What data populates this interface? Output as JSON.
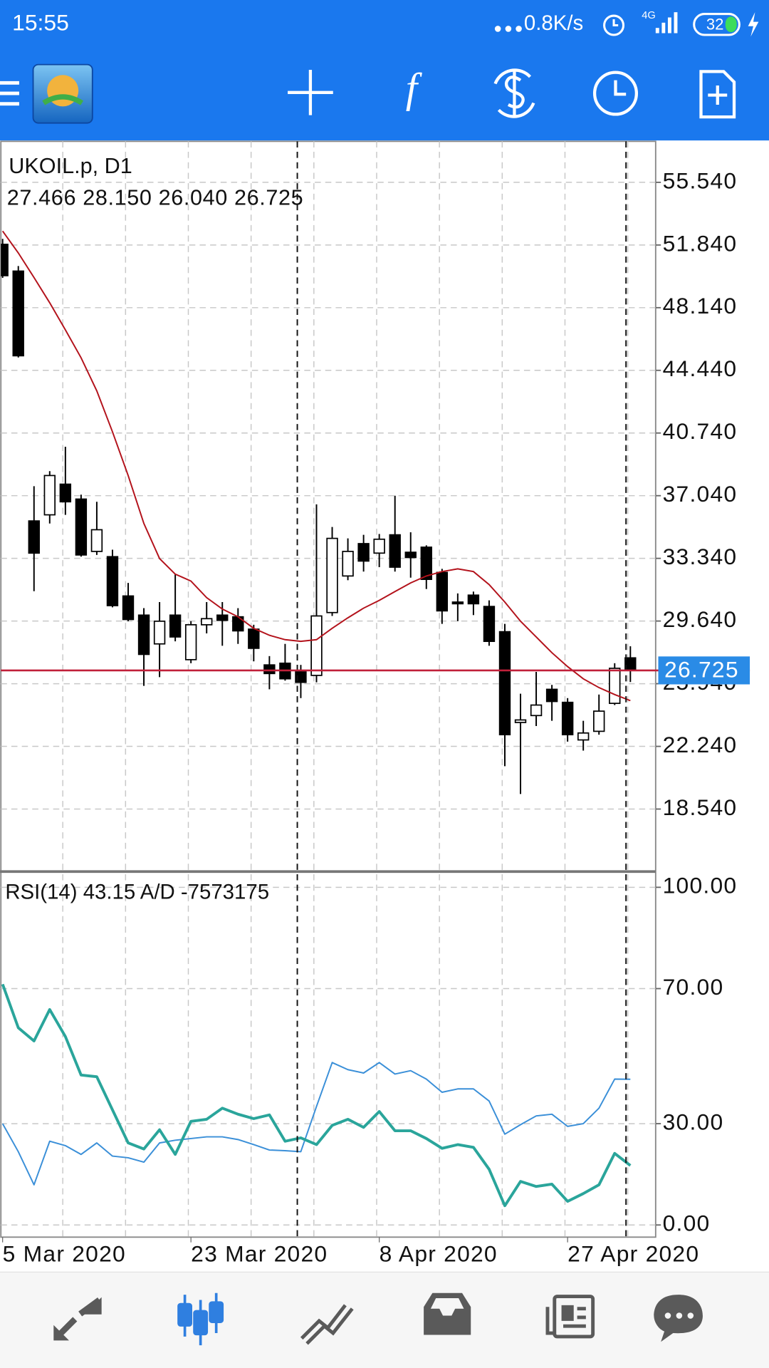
{
  "status_bar": {
    "time": "15:55",
    "speed": "0.8K/s",
    "network": "4G",
    "battery": "32"
  },
  "toolbar": {
    "function_icon": "f"
  },
  "chart_data": [
    {
      "type": "candlestick",
      "title": "UKOIL.p, D1",
      "subtitle": "27.466 28.150 26.040 26.725",
      "categories": [
        "5 Mar 2020",
        null,
        null,
        null,
        null,
        null,
        null,
        null,
        null,
        null,
        null,
        null,
        "23 Mar 2020",
        null,
        null,
        null,
        null,
        null,
        null,
        null,
        null,
        null,
        null,
        null,
        "8 Apr 2020",
        null,
        null,
        null,
        null,
        null,
        null,
        null,
        null,
        null,
        null,
        null,
        "27 Apr 2020",
        null,
        null,
        null,
        null
      ],
      "open": [
        51.88,
        50.3,
        35.55,
        35.91,
        37.72,
        36.84,
        33.75,
        33.44,
        31.12,
        29.99,
        28.29,
        29.99,
        27.36,
        29.42,
        29.99,
        29.89,
        29.16,
        27.05,
        27.15,
        26.64,
        26.43,
        30.14,
        32.3,
        34.21,
        33.65,
        34.73,
        33.7,
        34.0,
        32.51,
        30.76,
        31.17,
        30.5,
        29.01,
        23.65,
        24.06,
        25.61,
        24.84,
        22.62,
        23.13,
        24.78,
        27.466
      ],
      "high": [
        52.2,
        50.6,
        37.6,
        38.49,
        39.93,
        37.1,
        36.68,
        33.85,
        31.89,
        30.4,
        30.76,
        32.41,
        29.63,
        30.76,
        30.76,
        30.4,
        29.42,
        27.57,
        28.29,
        27.05,
        36.53,
        35.19,
        34.52,
        34.73,
        34.78,
        37.04,
        34.88,
        34.11,
        32.72,
        31.27,
        31.38,
        30.86,
        29.47,
        25.35,
        26.64,
        25.87,
        25.09,
        23.75,
        25.3,
        27.15,
        28.15
      ],
      "low": [
        49.9,
        45.2,
        31.4,
        35.4,
        35.91,
        33.44,
        33.54,
        30.45,
        29.63,
        25.81,
        26.33,
        28.44,
        27.15,
        28.91,
        28.18,
        28.29,
        27.26,
        25.61,
        26.12,
        25.09,
        26.02,
        29.94,
        32.05,
        32.56,
        32.82,
        32.56,
        32.2,
        31.53,
        29.47,
        29.63,
        29.99,
        28.18,
        21.07,
        19.43,
        23.44,
        23.75,
        22.52,
        21.99,
        22.93,
        24.68,
        26.04
      ],
      "close": [
        50.03,
        45.3,
        33.65,
        38.23,
        36.68,
        33.54,
        35.03,
        30.55,
        29.73,
        27.67,
        29.63,
        28.7,
        29.42,
        29.78,
        29.68,
        29.06,
        28.03,
        26.54,
        26.23,
        26.02,
        29.94,
        34.52,
        33.75,
        33.18,
        34.47,
        32.82,
        33.39,
        32.1,
        30.24,
        30.66,
        30.66,
        28.44,
        22.93,
        23.8,
        24.68,
        24.89,
        22.93,
        23.03,
        24.32,
        26.85,
        26.725
      ],
      "colors": {
        "up": "#ffffff",
        "down": "#000000",
        "wick": "#000000"
      },
      "overlay": {
        "color": "#b3121b",
        "values": [
          52.66,
          51.37,
          49.92,
          48.43,
          46.83,
          45.18,
          43.23,
          40.81,
          38.23,
          35.4,
          33.33,
          32.41,
          32.0,
          31.02,
          30.35,
          29.89,
          29.21,
          28.8,
          28.54,
          28.44,
          28.54,
          29.21,
          29.83,
          30.4,
          30.86,
          31.38,
          31.89,
          32.3,
          32.56,
          32.72,
          32.56,
          31.79,
          30.76,
          29.63,
          28.7,
          27.77,
          26.95,
          26.23,
          25.71,
          25.3,
          24.94
        ]
      },
      "current_price": 26.725,
      "current_price_color": "#c0203a",
      "current_price_box_color": "#2a8be6",
      "ylim": [
        14.9,
        57.96
      ],
      "yticks": [
        {
          "value": 55.54,
          "label": "55.540"
        },
        {
          "value": 51.84,
          "label": "51.840"
        },
        {
          "value": 48.14,
          "label": "48.140"
        },
        {
          "value": 44.44,
          "label": "44.440"
        },
        {
          "value": 40.74,
          "label": "40.740"
        },
        {
          "value": 37.04,
          "label": "37.040"
        },
        {
          "value": 33.34,
          "label": "33.340"
        },
        {
          "value": 29.64,
          "label": "29.640"
        },
        {
          "value": 25.94,
          "label": "25.940"
        },
        {
          "value": 22.24,
          "label": "22.240"
        },
        {
          "value": 18.54,
          "label": "18.540"
        }
      ],
      "grid": true
    },
    {
      "type": "line",
      "title": "RSI(14) 43.15 A/D -7573175",
      "series": [
        {
          "color": "#3a8fd8",
          "width": 1.6,
          "values": [
            30.0,
            21.7,
            11.9,
            24.8,
            23.5,
            20.9,
            24.3,
            20.4,
            19.9,
            18.6,
            24.3,
            25.1,
            25.6,
            26.1,
            26.1,
            25.3,
            23.8,
            22.2,
            22.0,
            21.7,
            35.1,
            48.1,
            46.0,
            45.0,
            48.1,
            44.7,
            45.7,
            43.2,
            39.3,
            40.3,
            40.3,
            36.7,
            26.9,
            29.7,
            32.3,
            32.8,
            29.2,
            30.0,
            34.6,
            43.2,
            43.15
          ]
        },
        {
          "color": "#2aa59b",
          "width": 3.2,
          "values": [
            71.3,
            58.4,
            54.5,
            63.8,
            55.8,
            44.4,
            43.9,
            34.1,
            24.3,
            22.5,
            28.2,
            20.9,
            30.7,
            31.3,
            34.6,
            32.8,
            31.5,
            32.6,
            24.8,
            25.8,
            23.8,
            29.5,
            31.3,
            28.9,
            33.6,
            27.9,
            27.9,
            25.6,
            22.7,
            23.8,
            23.0,
            16.5,
            5.7,
            12.9,
            11.4,
            12.1,
            7.0,
            9.3,
            11.9,
            21.2,
            17.6
          ]
        }
      ],
      "ylim": [
        -3.6,
        104.4
      ],
      "yticks": [
        {
          "value": 100,
          "label": "100.00"
        },
        {
          "value": 70,
          "label": "70.00"
        },
        {
          "value": 30,
          "label": "30.00"
        },
        {
          "value": 0,
          "label": "0.00"
        }
      ],
      "grid": true
    }
  ]
}
